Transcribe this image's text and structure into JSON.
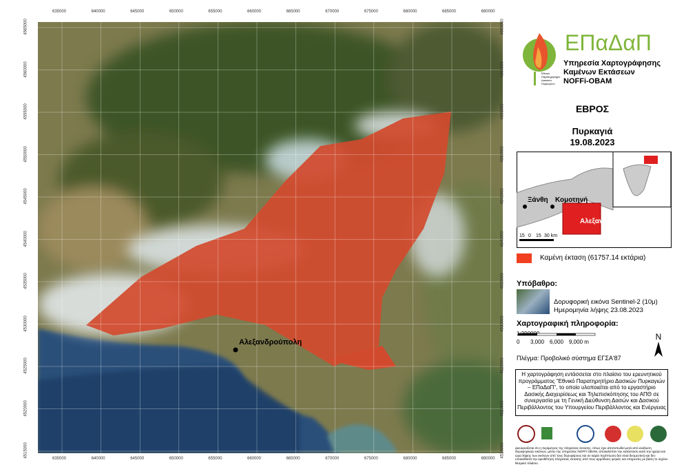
{
  "map": {
    "x_grid_labels": [
      "635000",
      "640000",
      "645000",
      "650000",
      "655000",
      "660000",
      "665000",
      "670000",
      "675000",
      "680000",
      "685000",
      "690000"
    ],
    "y_grid_labels": [
      "4565000",
      "4560000",
      "4555000",
      "4550000",
      "4545000",
      "4540000",
      "4535000",
      "4530000",
      "4525000",
      "4520000",
      "4515000"
    ],
    "city_label": "Αλεξανδρούπολη"
  },
  "logo": {
    "name": "ΕΠαΔαΠ",
    "small_text": "Εθνικό Παρατηρητήριο Δασικών Πυρκαγιών",
    "line1": "Υπηρεσία Χαρτογράφησης",
    "line2": "Καμένων Εκτάσεων",
    "line3": "NOFFi-OBAM"
  },
  "header": {
    "region": "ΕΒΡΟΣ",
    "event": "Πυρκαγιά",
    "date": "19.08.2023"
  },
  "inset": {
    "labels": [
      "Ξάνθη",
      "Κομοτηνή",
      "Αλεξανδρούπολη"
    ],
    "scale": [
      "15",
      "0",
      "15",
      "30 km"
    ]
  },
  "legend": {
    "burned": "Καμένη έκταση (61757.14 εκτάρια)"
  },
  "basemap": {
    "title": "Υπόβαθρο:",
    "line1": "Δορυφορική εικόνα Sentinel-2 (10μ)",
    "line2": "Ημερομηνία λήψης 23.08.2023"
  },
  "carto": {
    "title": "Χαρτογραφική πληροφορία:",
    "scale_ratio": "1:200000",
    "scale_labels": [
      "0",
      "3,000",
      "6,000",
      "9,000 m"
    ],
    "grid": "Πλέγμα: Προβολικό σύστημα ΕΓΣΑ'87",
    "north": "N"
  },
  "note": "Η χαρτογράφηση εντάσσεται στο πλαίσιο του ερευνητικού προγράμματος \"Εθνικό Παρατηρητήριο Δασικών Πυρκαγιών – ΕΠαΔαΠ\", το οποίο υλοποιείται από το εργαστήριο Δασικής Διαχειρίσεως και Τηλεπισκόπησης του ΑΠΘ σε συνεργασία με τη Γενική Διεύθυνση Δασών και Δασικού Περιβάλλοντος του Υπουργείου Περιβάλλοντος και Ενέργειας",
  "disclaimer": "Διευκρινίζεται ότι η περίμετρος της πληγείσας έκτασης, όπως έχει αποτυπωθεί μετά από ανάλυση δορυφορικών εικόνων, μέσω της υπηρεσίας NOFFi OBAM, αποκαλύπτει την κατάσταση κατά την ημέρα και ώρα λήψης των εικόνων από τους δορυφόρους και σε καμία περίπτωση δεν είναι δεσμευτική και δεν υποκαθιστά την οριοθέτηση πληγείσας έκτασης από τους αρμόδιους φορείς και υπηρεσίες με βάση το ισχύον θεσμικό πλαίσιο."
}
